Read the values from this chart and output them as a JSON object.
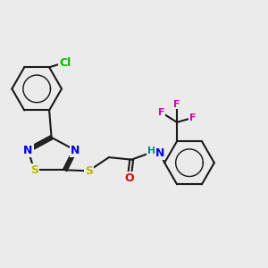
{
  "background_color": "#ebebeb",
  "bond_color": "#1a1a1a",
  "bond_width": 1.5,
  "atom_colors": {
    "N": "#0000ee",
    "S": "#b8b800",
    "O": "#ee0000",
    "Cl": "#00bb00",
    "F": "#cc00cc",
    "H": "#008888",
    "C": "#1a1a1a"
  },
  "font_size": 10,
  "font_size_small": 8.5
}
